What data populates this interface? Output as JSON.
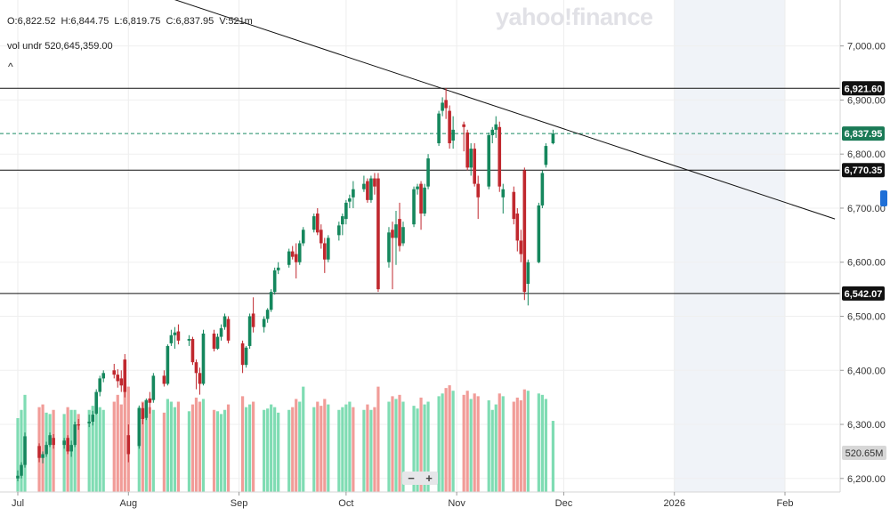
{
  "header": {
    "open": "O:6,822.52",
    "high": "H:6,844.75",
    "low": "L:6,819.75",
    "close": "C:6,837.95",
    "volume": "V:521m",
    "vol_undr_label": "vol undr",
    "vol_undr_value": "520,645,359.00",
    "collapse_glyph": "^"
  },
  "logo": {
    "text": "yahoo!finance"
  },
  "zoom": {
    "minus": "−",
    "plus": "+"
  },
  "colors": {
    "up": "#15875d",
    "down": "#c0282e",
    "vol_up": "#7fdcb3",
    "vol_down": "#f19c98",
    "trend": "#111111"
  },
  "chart_data": {
    "type": "candlestick",
    "title": "",
    "y_axis": {
      "ylim": [
        6175,
        7085
      ],
      "ticks": [
        6200,
        6300,
        6400,
        6500,
        6600,
        6700,
        6800,
        6900,
        7000
      ],
      "tick_labels": [
        "6,200.00",
        "6,300.00",
        "6,400.00",
        "6,500.00",
        "6,600.00",
        "6,700.00",
        "6,800.00",
        "6,900.00",
        "7,000.00"
      ],
      "position": "right"
    },
    "x_axis": {
      "start": "2025-06-30",
      "end": "2026-02-15",
      "month_labels": [
        {
          "date": "2025-07-01",
          "label": "Jul"
        },
        {
          "date": "2025-08-01",
          "label": "Aug"
        },
        {
          "date": "2025-09-01",
          "label": "Sep"
        },
        {
          "date": "2025-10-01",
          "label": "Oct"
        },
        {
          "date": "2025-11-01",
          "label": "Nov"
        },
        {
          "date": "2025-12-01",
          "label": "Dec"
        },
        {
          "date": "2026-01-01",
          "label": "2026"
        },
        {
          "date": "2026-02-01",
          "label": "Feb"
        }
      ]
    },
    "shaded_future": {
      "from": "2026-01-01",
      "to": "2026-02-01"
    },
    "horizontal_levels": [
      {
        "value": 6921.6,
        "label": "6,921.60",
        "style": "solid"
      },
      {
        "value": 6770.35,
        "label": "6,770.35",
        "style": "solid"
      },
      {
        "value": 6542.07,
        "label": "6,542.07",
        "style": "solid"
      }
    ],
    "last_price": {
      "value": 6837.95,
      "label": "6,837.95"
    },
    "volume_label": "520.65M",
    "trendline": {
      "from": {
        "date": "2025-08-12",
        "value": 7090
      },
      "to": {
        "date": "2026-02-15",
        "value": 6680
      }
    },
    "candles": [
      [
        "2025-07-01",
        6200,
        6215,
        6195,
        6205
      ],
      [
        "2025-07-02",
        6205,
        6230,
        6200,
        6225
      ],
      [
        "2025-07-03",
        6225,
        6285,
        6220,
        6278
      ],
      [
        "2025-07-07",
        6260,
        6265,
        6230,
        6238
      ],
      [
        "2025-07-08",
        6238,
        6250,
        6228,
        6245
      ],
      [
        "2025-07-09",
        6245,
        6268,
        6240,
        6262
      ],
      [
        "2025-07-10",
        6262,
        6285,
        6258,
        6280
      ],
      [
        "2025-07-11",
        6275,
        6282,
        6255,
        6262
      ],
      [
        "2025-07-14",
        6262,
        6275,
        6255,
        6270
      ],
      [
        "2025-07-15",
        6275,
        6280,
        6245,
        6250
      ],
      [
        "2025-07-16",
        6250,
        6270,
        6240,
        6262
      ],
      [
        "2025-07-17",
        6262,
        6305,
        6258,
        6300
      ],
      [
        "2025-07-18",
        6300,
        6310,
        6290,
        6298
      ],
      [
        "2025-07-21",
        6302,
        6318,
        6295,
        6305
      ],
      [
        "2025-07-22",
        6305,
        6325,
        6298,
        6318
      ],
      [
        "2025-07-23",
        6320,
        6365,
        6318,
        6360
      ],
      [
        "2025-07-24",
        6360,
        6390,
        6352,
        6385
      ],
      [
        "2025-07-25",
        6385,
        6400,
        6378,
        6395
      ],
      [
        "2025-07-28",
        6400,
        6412,
        6385,
        6392
      ],
      [
        "2025-07-29",
        6392,
        6402,
        6368,
        6380
      ],
      [
        "2025-07-30",
        6385,
        6400,
        6360,
        6372
      ],
      [
        "2025-07-31",
        6420,
        6430,
        6350,
        6360
      ],
      [
        "2025-08-01",
        6280,
        6300,
        6230,
        6245
      ],
      [
        "2025-08-04",
        6260,
        6335,
        6255,
        6330
      ],
      [
        "2025-08-05",
        6330,
        6340,
        6300,
        6310
      ],
      [
        "2025-08-06",
        6312,
        6348,
        6308,
        6345
      ],
      [
        "2025-08-07",
        6348,
        6360,
        6320,
        6340
      ],
      [
        "2025-08-08",
        6345,
        6395,
        6340,
        6390
      ],
      [
        "2025-08-11",
        6390,
        6400,
        6370,
        6375
      ],
      [
        "2025-08-12",
        6375,
        6448,
        6372,
        6445
      ],
      [
        "2025-08-13",
        6450,
        6475,
        6445,
        6465
      ],
      [
        "2025-08-14",
        6465,
        6480,
        6440,
        6470
      ],
      [
        "2025-08-15",
        6472,
        6485,
        6448,
        6455
      ],
      [
        "2025-08-18",
        6455,
        6465,
        6445,
        6458
      ],
      [
        "2025-08-19",
        6458,
        6462,
        6410,
        6415
      ],
      [
        "2025-08-20",
        6415,
        6420,
        6365,
        6395
      ],
      [
        "2025-08-21",
        6395,
        6405,
        6355,
        6375
      ],
      [
        "2025-08-22",
        6375,
        6475,
        6372,
        6468
      ],
      [
        "2025-08-25",
        6468,
        6475,
        6435,
        6440
      ],
      [
        "2025-08-26",
        6440,
        6468,
        6438,
        6462
      ],
      [
        "2025-08-27",
        6462,
        6485,
        6455,
        6478
      ],
      [
        "2025-08-28",
        6480,
        6505,
        6475,
        6500
      ],
      [
        "2025-08-29",
        6495,
        6500,
        6450,
        6455
      ],
      [
        "2025-09-02",
        6450,
        6455,
        6395,
        6410
      ],
      [
        "2025-09-03",
        6410,
        6445,
        6405,
        6442
      ],
      [
        "2025-09-04",
        6445,
        6505,
        6440,
        6500
      ],
      [
        "2025-09-05",
        6505,
        6535,
        6470,
        6480
      ],
      [
        "2025-09-08",
        6480,
        6500,
        6470,
        6495
      ],
      [
        "2025-09-09",
        6495,
        6515,
        6488,
        6512
      ],
      [
        "2025-09-10",
        6512,
        6550,
        6508,
        6545
      ],
      [
        "2025-09-11",
        6545,
        6590,
        6540,
        6585
      ],
      [
        "2025-09-12",
        6585,
        6600,
        6578,
        6590
      ],
      [
        "2025-09-15",
        6595,
        6625,
        6590,
        6620
      ],
      [
        "2025-09-16",
        6620,
        6630,
        6605,
        6610
      ],
      [
        "2025-09-17",
        6615,
        6635,
        6570,
        6600
      ],
      [
        "2025-09-18",
        6600,
        6640,
        6595,
        6635
      ],
      [
        "2025-09-19",
        6635,
        6665,
        6630,
        6660
      ],
      [
        "2025-09-22",
        6660,
        6690,
        6655,
        6685
      ],
      [
        "2025-09-23",
        6690,
        6700,
        6650,
        6655
      ],
      [
        "2025-09-24",
        6660,
        6670,
        6625,
        6635
      ],
      [
        "2025-09-25",
        6635,
        6645,
        6580,
        6605
      ],
      [
        "2025-09-26",
        6605,
        6650,
        6600,
        6645
      ],
      [
        "2025-09-29",
        6650,
        6675,
        6640,
        6668
      ],
      [
        "2025-09-30",
        6670,
        6690,
        6650,
        6685
      ],
      [
        "2025-10-01",
        6680,
        6715,
        6670,
        6710
      ],
      [
        "2025-10-02",
        6712,
        6725,
        6700,
        6718
      ],
      [
        "2025-10-03",
        6720,
        6750,
        6700,
        6735
      ],
      [
        "2025-10-06",
        6735,
        6760,
        6730,
        6745
      ],
      [
        "2025-10-07",
        6750,
        6755,
        6710,
        6715
      ],
      [
        "2025-10-08",
        6715,
        6760,
        6710,
        6755
      ],
      [
        "2025-10-09",
        6755,
        6765,
        6725,
        6740
      ],
      [
        "2025-10-10",
        6755,
        6765,
        6545,
        6550
      ],
      [
        "2025-10-13",
        6600,
        6665,
        6590,
        6655
      ],
      [
        "2025-10-14",
        6660,
        6675,
        6550,
        6645
      ],
      [
        "2025-10-15",
        6645,
        6695,
        6595,
        6670
      ],
      [
        "2025-10-16",
        6680,
        6710,
        6620,
        6630
      ],
      [
        "2025-10-17",
        6635,
        6675,
        6630,
        6665
      ],
      [
        "2025-10-20",
        6670,
        6740,
        6665,
        6735
      ],
      [
        "2025-10-21",
        6735,
        6745,
        6725,
        6740
      ],
      [
        "2025-10-22",
        6745,
        6750,
        6660,
        6690
      ],
      [
        "2025-10-23",
        6690,
        6745,
        6685,
        6738
      ],
      [
        "2025-10-24",
        6740,
        6800,
        6735,
        6792
      ],
      [
        "2025-10-27",
        6820,
        6880,
        6815,
        6875
      ],
      [
        "2025-10-28",
        6880,
        6905,
        6870,
        6895
      ],
      [
        "2025-10-29",
        6900,
        6922,
        6865,
        6885
      ],
      [
        "2025-10-30",
        6880,
        6890,
        6810,
        6820
      ],
      [
        "2025-10-31",
        6825,
        6870,
        6810,
        6845
      ],
      [
        "2025-11-03",
        6855,
        6860,
        6805,
        6850
      ],
      [
        "2025-11-04",
        6840,
        6845,
        6770,
        6775
      ],
      [
        "2025-11-05",
        6775,
        6820,
        6760,
        6810
      ],
      [
        "2025-11-06",
        6810,
        6820,
        6740,
        6745
      ],
      [
        "2025-11-07",
        6745,
        6760,
        6680,
        6720
      ],
      [
        "2025-11-10",
        6740,
        6840,
        6735,
        6835
      ],
      [
        "2025-11-11",
        6835,
        6850,
        6820,
        6845
      ],
      [
        "2025-11-12",
        6845,
        6870,
        6830,
        6855
      ],
      [
        "2025-11-13",
        6850,
        6860,
        6730,
        6740
      ],
      [
        "2025-11-14",
        6720,
        6745,
        6690,
        6735
      ],
      [
        "2025-11-17",
        6730,
        6740,
        6670,
        6680
      ],
      [
        "2025-11-18",
        6690,
        6700,
        6620,
        6640
      ],
      [
        "2025-11-19",
        6640,
        6660,
        6600,
        6615
      ],
      [
        "2025-11-20",
        6770,
        6775,
        6530,
        6545
      ],
      [
        "2025-11-21",
        6560,
        6605,
        6520,
        6600
      ],
      [
        "2025-11-24",
        6600,
        6710,
        6598,
        6705
      ],
      [
        "2025-11-25",
        6705,
        6770,
        6700,
        6765
      ],
      [
        "2025-11-26",
        6780,
        6820,
        6775,
        6815
      ],
      [
        "2025-11-28",
        6820,
        6845,
        6818,
        6838
      ]
    ],
    "volumes": [
      [
        "2025-07-01",
        270,
        "up"
      ],
      [
        "2025-07-02",
        300,
        "up"
      ],
      [
        "2025-07-03",
        355,
        "up"
      ],
      [
        "2025-07-07",
        310,
        "down"
      ],
      [
        "2025-07-08",
        320,
        "down"
      ],
      [
        "2025-07-09",
        290,
        "up"
      ],
      [
        "2025-07-10",
        285,
        "up"
      ],
      [
        "2025-07-11",
        300,
        "down"
      ],
      [
        "2025-07-14",
        285,
        "up"
      ],
      [
        "2025-07-15",
        310,
        "down"
      ],
      [
        "2025-07-16",
        300,
        "up"
      ],
      [
        "2025-07-17",
        300,
        "up"
      ],
      [
        "2025-07-18",
        285,
        "down"
      ],
      [
        "2025-07-21",
        300,
        "up"
      ],
      [
        "2025-07-22",
        315,
        "up"
      ],
      [
        "2025-07-23",
        320,
        "up"
      ],
      [
        "2025-07-24",
        310,
        "up"
      ],
      [
        "2025-07-25",
        300,
        "up"
      ],
      [
        "2025-07-28",
        330,
        "down"
      ],
      [
        "2025-07-29",
        355,
        "down"
      ],
      [
        "2025-07-30",
        320,
        "down"
      ],
      [
        "2025-07-31",
        370,
        "down"
      ],
      [
        "2025-08-01",
        385,
        "down"
      ],
      [
        "2025-08-04",
        310,
        "up"
      ],
      [
        "2025-08-05",
        330,
        "down"
      ],
      [
        "2025-08-06",
        320,
        "up"
      ],
      [
        "2025-08-07",
        310,
        "down"
      ],
      [
        "2025-08-08",
        300,
        "up"
      ],
      [
        "2025-08-11",
        290,
        "down"
      ],
      [
        "2025-08-12",
        340,
        "up"
      ],
      [
        "2025-08-13",
        330,
        "up"
      ],
      [
        "2025-08-14",
        310,
        "up"
      ],
      [
        "2025-08-15",
        330,
        "down"
      ],
      [
        "2025-08-18",
        295,
        "up"
      ],
      [
        "2025-08-19",
        320,
        "down"
      ],
      [
        "2025-08-20",
        345,
        "down"
      ],
      [
        "2025-08-21",
        330,
        "down"
      ],
      [
        "2025-08-22",
        340,
        "up"
      ],
      [
        "2025-08-25",
        300,
        "down"
      ],
      [
        "2025-08-26",
        295,
        "up"
      ],
      [
        "2025-08-27",
        285,
        "up"
      ],
      [
        "2025-08-28",
        300,
        "up"
      ],
      [
        "2025-08-29",
        320,
        "down"
      ],
      [
        "2025-09-02",
        350,
        "down"
      ],
      [
        "2025-09-03",
        310,
        "up"
      ],
      [
        "2025-09-04",
        320,
        "up"
      ],
      [
        "2025-09-05",
        330,
        "down"
      ],
      [
        "2025-09-08",
        300,
        "up"
      ],
      [
        "2025-09-09",
        305,
        "up"
      ],
      [
        "2025-09-10",
        320,
        "up"
      ],
      [
        "2025-09-11",
        310,
        "up"
      ],
      [
        "2025-09-12",
        290,
        "up"
      ],
      [
        "2025-09-15",
        300,
        "up"
      ],
      [
        "2025-09-16",
        310,
        "down"
      ],
      [
        "2025-09-17",
        340,
        "down"
      ],
      [
        "2025-09-18",
        330,
        "up"
      ],
      [
        "2025-09-19",
        385,
        "up"
      ],
      [
        "2025-09-22",
        310,
        "up"
      ],
      [
        "2025-09-23",
        330,
        "down"
      ],
      [
        "2025-09-24",
        315,
        "down"
      ],
      [
        "2025-09-25",
        340,
        "down"
      ],
      [
        "2025-09-26",
        320,
        "up"
      ],
      [
        "2025-09-29",
        300,
        "up"
      ],
      [
        "2025-09-30",
        310,
        "up"
      ],
      [
        "2025-10-01",
        320,
        "up"
      ],
      [
        "2025-10-02",
        330,
        "up"
      ],
      [
        "2025-10-03",
        310,
        "down"
      ],
      [
        "2025-10-06",
        300,
        "up"
      ],
      [
        "2025-10-07",
        320,
        "down"
      ],
      [
        "2025-10-08",
        300,
        "up"
      ],
      [
        "2025-10-09",
        310,
        "down"
      ],
      [
        "2025-10-10",
        385,
        "down"
      ],
      [
        "2025-10-13",
        330,
        "up"
      ],
      [
        "2025-10-14",
        350,
        "down"
      ],
      [
        "2025-10-15",
        340,
        "up"
      ],
      [
        "2025-10-16",
        355,
        "down"
      ],
      [
        "2025-10-17",
        330,
        "up"
      ],
      [
        "2025-10-20",
        315,
        "up"
      ],
      [
        "2025-10-21",
        305,
        "up"
      ],
      [
        "2025-10-22",
        345,
        "down"
      ],
      [
        "2025-10-23",
        320,
        "up"
      ],
      [
        "2025-10-24",
        330,
        "up"
      ],
      [
        "2025-10-27",
        350,
        "up"
      ],
      [
        "2025-10-28",
        360,
        "up"
      ],
      [
        "2025-10-29",
        380,
        "down"
      ],
      [
        "2025-10-30",
        390,
        "down"
      ],
      [
        "2025-10-31",
        370,
        "up"
      ],
      [
        "2025-11-03",
        355,
        "down"
      ],
      [
        "2025-11-04",
        370,
        "down"
      ],
      [
        "2025-11-05",
        340,
        "up"
      ],
      [
        "2025-11-06",
        360,
        "down"
      ],
      [
        "2025-11-07",
        350,
        "down"
      ],
      [
        "2025-11-10",
        335,
        "up"
      ],
      [
        "2025-11-11",
        300,
        "up"
      ],
      [
        "2025-11-12",
        320,
        "up"
      ],
      [
        "2025-11-13",
        360,
        "down"
      ],
      [
        "2025-11-14",
        350,
        "up"
      ],
      [
        "2025-11-17",
        330,
        "down"
      ],
      [
        "2025-11-18",
        345,
        "down"
      ],
      [
        "2025-11-19",
        335,
        "down"
      ],
      [
        "2025-11-20",
        375,
        "down"
      ],
      [
        "2025-11-21",
        370,
        "up"
      ],
      [
        "2025-11-24",
        360,
        "up"
      ],
      [
        "2025-11-25",
        355,
        "up"
      ],
      [
        "2025-11-26",
        340,
        "up"
      ],
      [
        "2025-11-28",
        260,
        "up"
      ]
    ],
    "volume_scale_max": 400
  }
}
